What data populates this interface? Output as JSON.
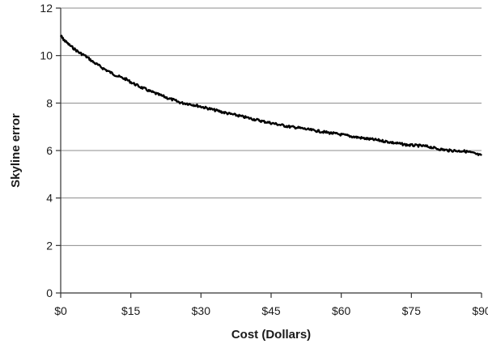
{
  "chart_data": {
    "type": "line",
    "title": "",
    "xlabel": "Cost (Dollars)",
    "ylabel": "Skyline error",
    "xlim": [
      0,
      90
    ],
    "ylim": [
      0,
      12
    ],
    "x_ticks": [
      {
        "value": 0,
        "label": "$0"
      },
      {
        "value": 15,
        "label": "$15"
      },
      {
        "value": 30,
        "label": "$30"
      },
      {
        "value": 45,
        "label": "$45"
      },
      {
        "value": 60,
        "label": "$60"
      },
      {
        "value": 75,
        "label": "$75"
      },
      {
        "value": 90,
        "label": "$90"
      }
    ],
    "y_ticks": [
      {
        "value": 0,
        "label": "0"
      },
      {
        "value": 2,
        "label": "2"
      },
      {
        "value": 4,
        "label": "4"
      },
      {
        "value": 6,
        "label": "6"
      },
      {
        "value": 8,
        "label": "8"
      },
      {
        "value": 10,
        "label": "10"
      },
      {
        "value": 12,
        "label": "12"
      }
    ],
    "grid": "horizontal",
    "legend": "none",
    "series": [
      {
        "color": "#000000",
        "x": [
          0,
          0.5,
          1,
          2,
          3,
          4,
          5,
          6,
          7,
          8,
          9,
          10,
          11,
          12,
          13,
          14,
          15,
          16,
          17,
          18,
          19,
          20,
          21,
          22,
          23,
          24,
          25,
          26,
          27,
          28,
          29,
          30,
          31,
          32,
          33,
          34,
          35,
          36,
          37,
          38,
          39,
          40,
          41,
          42,
          43,
          44,
          45,
          46,
          47,
          48,
          49,
          50,
          51,
          52,
          53,
          54,
          55,
          56,
          57,
          58,
          59,
          60,
          61,
          62,
          63,
          64,
          65,
          66,
          67,
          68,
          69,
          70,
          71,
          72,
          73,
          74,
          75,
          76,
          77,
          78,
          79,
          80,
          81,
          82,
          83,
          84,
          85,
          86,
          87,
          88,
          89,
          90
        ],
        "y": [
          10.85,
          10.7,
          10.6,
          10.42,
          10.27,
          10.12,
          10.02,
          9.88,
          9.72,
          9.6,
          9.47,
          9.36,
          9.25,
          9.15,
          9.07,
          9.0,
          8.88,
          8.78,
          8.68,
          8.6,
          8.5,
          8.43,
          8.35,
          8.28,
          8.2,
          8.14,
          8.06,
          8.0,
          7.98,
          7.94,
          7.9,
          7.85,
          7.8,
          7.75,
          7.7,
          7.65,
          7.6,
          7.55,
          7.51,
          7.47,
          7.42,
          7.38,
          7.33,
          7.29,
          7.24,
          7.2,
          7.16,
          7.12,
          7.08,
          7.04,
          7.0,
          6.98,
          6.95,
          6.92,
          6.88,
          6.85,
          6.82,
          6.79,
          6.76,
          6.73,
          6.7,
          6.67,
          6.64,
          6.6,
          6.57,
          6.54,
          6.51,
          6.48,
          6.46,
          6.43,
          6.4,
          6.37,
          6.33,
          6.3,
          6.27,
          6.24,
          6.22,
          6.21,
          6.2,
          6.18,
          6.15,
          6.1,
          6.06,
          6.03,
          6.0,
          6.0,
          5.98,
          5.98,
          5.95,
          5.9,
          5.84,
          5.79
        ]
      }
    ]
  }
}
